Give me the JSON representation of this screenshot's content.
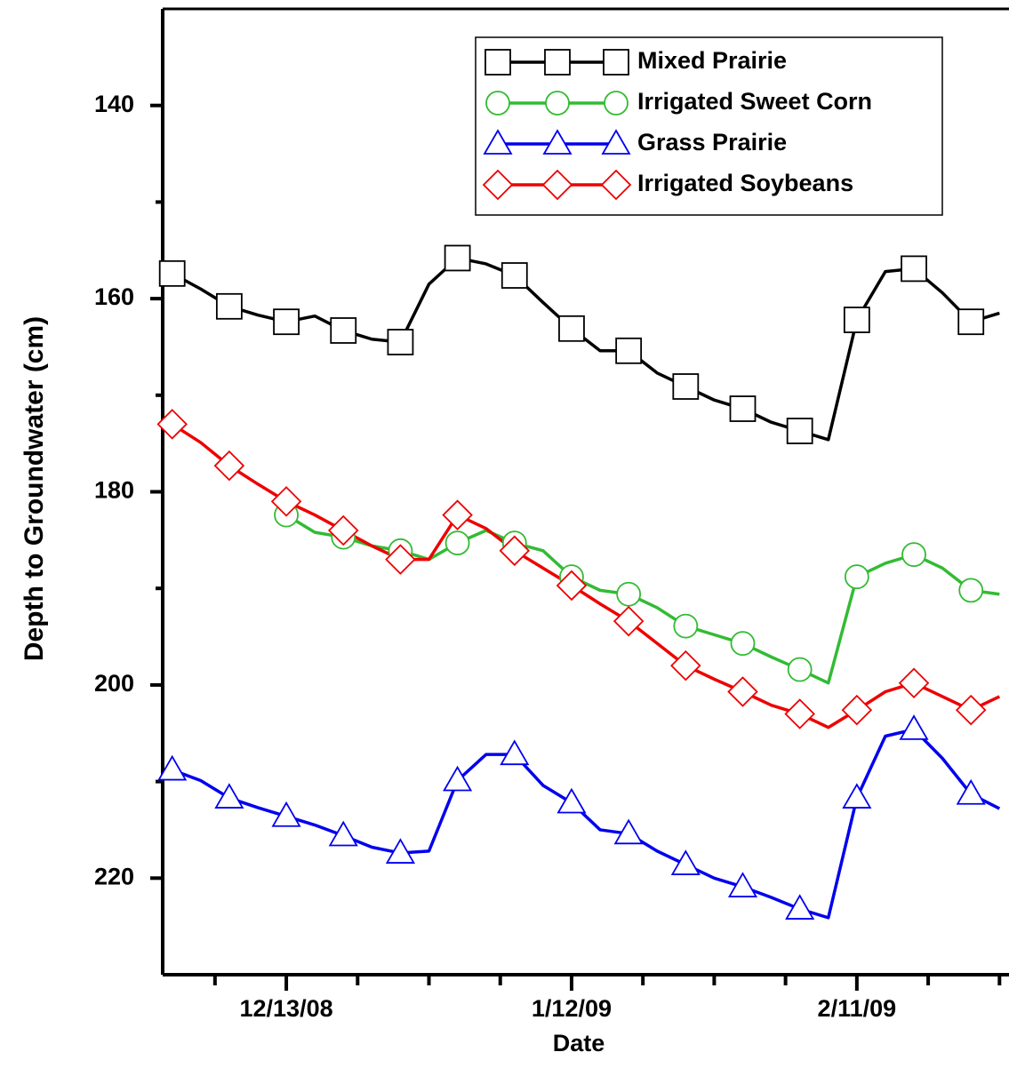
{
  "chart_data": {
    "type": "line",
    "xlabel": "Date",
    "ylabel": "Depth to Groundwater (cm)",
    "x": [
      "2008-12-01",
      "2008-12-04",
      "2008-12-07",
      "2008-12-10",
      "2008-12-13",
      "2008-12-16",
      "2008-12-19",
      "2008-12-22",
      "2008-12-25",
      "2008-12-28",
      "2008-12-31",
      "2009-01-03",
      "2009-01-06",
      "2009-01-09",
      "2009-01-12",
      "2009-01-15",
      "2009-01-18",
      "2009-01-21",
      "2009-01-24",
      "2009-01-27",
      "2009-01-30",
      "2009-02-02",
      "2009-02-05",
      "2009-02-08",
      "2009-02-11",
      "2009-02-14",
      "2009-02-17",
      "2009-02-20",
      "2009-02-23",
      "2009-02-26"
    ],
    "series": [
      {
        "name": "Mixed Prairie",
        "color": "#000000",
        "marker": "square",
        "values": [
          157.4,
          159,
          160.8,
          161.7,
          162.4,
          161.8,
          163.3,
          164.2,
          164.5,
          158.5,
          155.8,
          156.4,
          157.6,
          160.4,
          163.1,
          165.4,
          165.4,
          167.7,
          169.1,
          170.5,
          171.4,
          172.8,
          173.7,
          174.6,
          162.2,
          157.2,
          156.9,
          159.4,
          162.4,
          161.5
        ]
      },
      {
        "name": "Irrigated Sweet Corn",
        "color": "#33bb33",
        "marker": "circle",
        "values": [
          null,
          null,
          null,
          null,
          182.4,
          184.2,
          184.7,
          185.6,
          186.1,
          187,
          185.3,
          184,
          185.3,
          186.1,
          188.8,
          190.2,
          190.6,
          192,
          193.9,
          194.8,
          195.7,
          197.1,
          198.4,
          199.8,
          188.8,
          187.4,
          186.5,
          187.9,
          190.2,
          190.6
        ]
      },
      {
        "name": "Grass Prairie",
        "color": "#0000ee",
        "marker": "triangle",
        "values": [
          208.8,
          209.9,
          211.7,
          212.7,
          213.6,
          214.5,
          215.6,
          216.8,
          217.4,
          217.2,
          209.9,
          207.2,
          207.2,
          210.4,
          212.2,
          215,
          215.4,
          217.2,
          218.6,
          220,
          220.9,
          222,
          223.2,
          224.1,
          211.7,
          205.3,
          204.6,
          207.6,
          211.3,
          212.8
        ]
      },
      {
        "name": "Irrigated Soybeans",
        "color": "#ee0000",
        "marker": "diamond",
        "values": [
          173,
          174.9,
          177.3,
          179.2,
          181,
          182.4,
          184,
          185.6,
          187,
          187,
          182.4,
          183.8,
          186.1,
          187.9,
          189.7,
          191.6,
          193.4,
          195.7,
          198,
          199.4,
          200.7,
          202.1,
          203,
          204.4,
          202.6,
          200.7,
          199.8,
          201.2,
          202.6,
          201.2
        ]
      }
    ],
    "marker_every": 2,
    "xlim": [
      "2008-11-30",
      "2009-02-27"
    ],
    "xticks": [
      {
        "value": "2008-12-13",
        "label": "12/13/08"
      },
      {
        "value": "2009-01-12",
        "label": "1/12/09"
      },
      {
        "value": "2009-02-11",
        "label": "2/11/09"
      }
    ],
    "xticks_minor": [
      "2008-12-05T12:00",
      "2008-12-20T12:00",
      "2008-12-28",
      "2009-01-04T12:00",
      "2009-01-19T12:00",
      "2009-01-27",
      "2009-02-03T12:00",
      "2009-02-18T12:00",
      "2009-02-26"
    ],
    "ylim": [
      130,
      230
    ],
    "y_inverted": true,
    "yticks": [
      140,
      160,
      180,
      200,
      220
    ],
    "yticks_minor": [
      150,
      170,
      190,
      210
    ],
    "legend": "upper right"
  }
}
